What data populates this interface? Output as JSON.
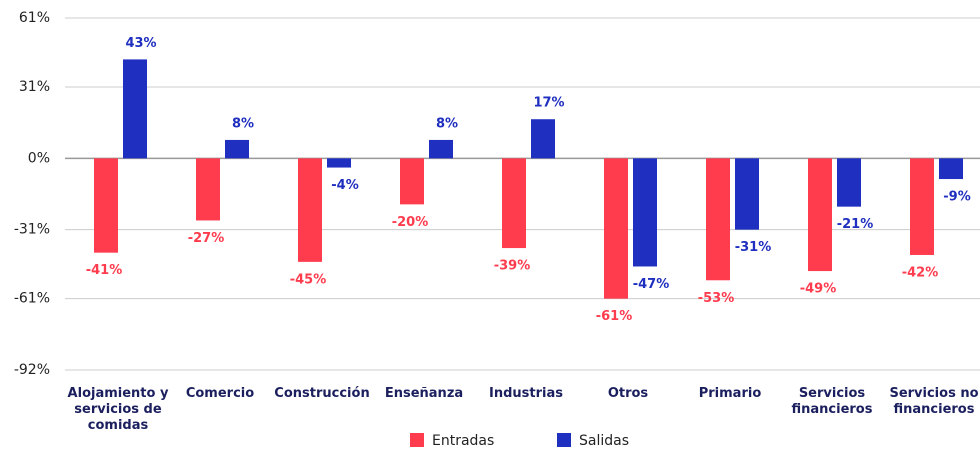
{
  "chart_data": {
    "type": "bar",
    "categories": [
      "Alojamiento y servicios de comidas",
      "Comercio",
      "Construcción",
      "Enseñanza",
      "Industrias",
      "Otros",
      "Primario",
      "Servicios financieros",
      "Servicios no financieros"
    ],
    "series": [
      {
        "name": "Entradas",
        "color": "#ff3b4e",
        "values": [
          -41,
          -27,
          -45,
          -20,
          -39,
          -61,
          -53,
          -49,
          -42
        ],
        "value_labels": [
          "-41%",
          "-27%",
          "-45%",
          "-20%",
          "-39%",
          "-61%",
          "-53%",
          "-49%",
          "-42%"
        ]
      },
      {
        "name": "Salidas",
        "color": "#1f2fbf",
        "values": [
          43,
          8,
          -4,
          8,
          17,
          -47,
          -31,
          -21,
          -9
        ],
        "value_labels": [
          "43%",
          "8%",
          "-4%",
          "8%",
          "17%",
          "-47%",
          "-31%",
          "-21%",
          "-9%"
        ]
      }
    ],
    "ylim": [
      -92,
      61
    ],
    "yticks": [
      {
        "value": 61,
        "label": "61%"
      },
      {
        "value": 31,
        "label": "31%"
      },
      {
        "value": 0,
        "label": "0%"
      },
      {
        "value": -31,
        "label": "-31%"
      },
      {
        "value": -61,
        "label": "-61%"
      },
      {
        "value": -92,
        "label": "-92%"
      }
    ],
    "grid": true,
    "legend": "bottom"
  }
}
